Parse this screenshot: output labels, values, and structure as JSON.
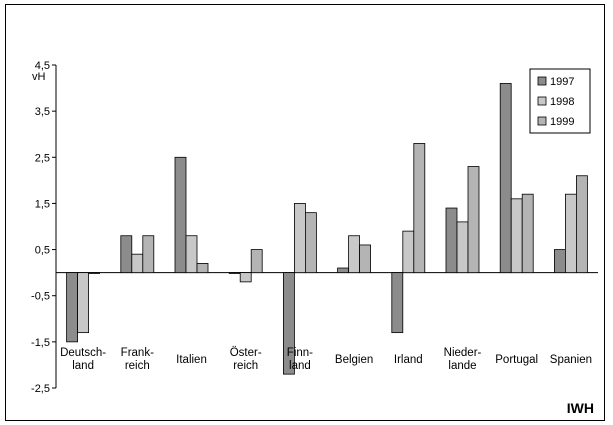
{
  "chart_data": {
    "type": "bar",
    "title": "",
    "ylabel_unit": "vH",
    "ylim": [
      -2.5,
      4.5
    ],
    "yticks": [
      -2.5,
      -1.5,
      -0.5,
      0.5,
      1.5,
      2.5,
      3.5,
      4.5
    ],
    "ytick_labels": [
      "-2,5",
      "-1,5",
      "-0,5",
      "0,5",
      "1,5",
      "2,5",
      "3,5",
      "4,5"
    ],
    "grid": false,
    "legend_position": "top-right",
    "categories": [
      [
        "Deutsch-",
        "land"
      ],
      [
        "Frank-",
        "reich"
      ],
      [
        "Italien"
      ],
      [
        "Öster-",
        "reich"
      ],
      [
        "Finn-",
        "land"
      ],
      [
        "Belgien"
      ],
      [
        "Irland"
      ],
      [
        "Nieder-",
        "lande"
      ],
      [
        "Portugal"
      ],
      [
        "Spanien"
      ]
    ],
    "series": [
      {
        "name": "1997",
        "color": "#8c8c8c",
        "values": [
          -1.5,
          0.8,
          2.5,
          0.0,
          -2.2,
          0.1,
          -1.3,
          1.4,
          4.1,
          0.5
        ]
      },
      {
        "name": "1998",
        "color": "#c8c8c8",
        "values": [
          -1.3,
          0.4,
          0.8,
          -0.2,
          1.5,
          0.8,
          0.9,
          1.1,
          1.6,
          1.7
        ]
      },
      {
        "name": "1999",
        "color": "#b4b4b4",
        "values": [
          0.0,
          0.8,
          0.2,
          0.5,
          1.3,
          0.6,
          2.8,
          2.3,
          1.7,
          2.1
        ]
      }
    ]
  },
  "credit": "IWH"
}
